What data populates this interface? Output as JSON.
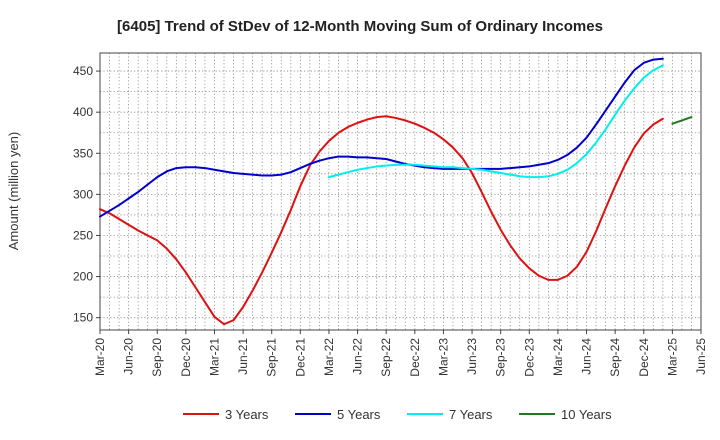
{
  "chart_data": {
    "type": "line",
    "title": "[6405]  Trend of StDev of 12-Month Moving Sum of Ordinary Incomes",
    "ylabel": "Amount (million yen)",
    "xlabel": "",
    "ylim": [
      135,
      472
    ],
    "yticks": [
      150,
      200,
      250,
      300,
      350,
      400,
      450
    ],
    "x_tick_labels": [
      "Mar-20",
      "Jun-20",
      "Sep-20",
      "Dec-20",
      "Mar-21",
      "Jun-21",
      "Sep-21",
      "Dec-21",
      "Mar-22",
      "Jun-22",
      "Sep-22",
      "Dec-22",
      "Mar-23",
      "Jun-23",
      "Sep-23",
      "Dec-23",
      "Mar-24",
      "Jun-24",
      "Sep-24",
      "Dec-24",
      "Mar-25",
      "Jun-25"
    ],
    "x_count": 64,
    "grid": true,
    "legend_position": "bottom",
    "series": [
      {
        "name": "3 Years",
        "color": "#dd1111",
        "start": 0,
        "values": [
          282,
          277,
          270,
          263,
          256,
          250,
          244,
          234,
          221,
          205,
          187,
          169,
          151,
          142,
          147,
          163,
          183,
          205,
          229,
          254,
          281,
          310,
          335,
          352,
          365,
          375,
          382,
          387,
          391,
          394,
          395,
          393,
          390,
          386,
          381,
          375,
          367,
          357,
          344,
          326,
          303,
          279,
          257,
          238,
          222,
          210,
          201,
          196,
          196,
          201,
          212,
          230,
          255,
          283,
          310,
          335,
          357,
          374,
          385,
          392
        ]
      },
      {
        "name": "5 Years",
        "color": "#0000cc",
        "start": 0,
        "values": [
          273,
          280,
          287,
          295,
          303,
          312,
          321,
          328,
          332,
          333,
          333,
          332,
          330,
          328,
          326,
          325,
          324,
          323,
          323,
          324,
          327,
          332,
          337,
          341,
          344,
          346,
          346,
          345,
          345,
          344,
          343,
          340,
          337,
          335,
          333,
          332,
          331,
          331,
          331,
          331,
          331,
          331,
          331,
          332,
          333,
          334,
          336,
          338,
          342,
          348,
          357,
          369,
          385,
          402,
          419,
          436,
          451,
          460,
          464,
          465
        ]
      },
      {
        "name": "7 Years",
        "color": "#00eeee",
        "start": 24,
        "values": [
          321,
          324,
          327,
          330,
          332,
          334,
          335,
          336,
          336,
          336,
          335,
          334,
          333,
          333,
          332,
          331,
          330,
          328,
          326,
          324,
          322,
          321,
          321,
          322,
          325,
          330,
          338,
          349,
          363,
          379,
          397,
          414,
          429,
          442,
          451,
          457
        ]
      },
      {
        "name": "10 Years",
        "color": "#227722",
        "start": 60,
        "values": [
          386,
          390,
          394
        ]
      }
    ]
  }
}
